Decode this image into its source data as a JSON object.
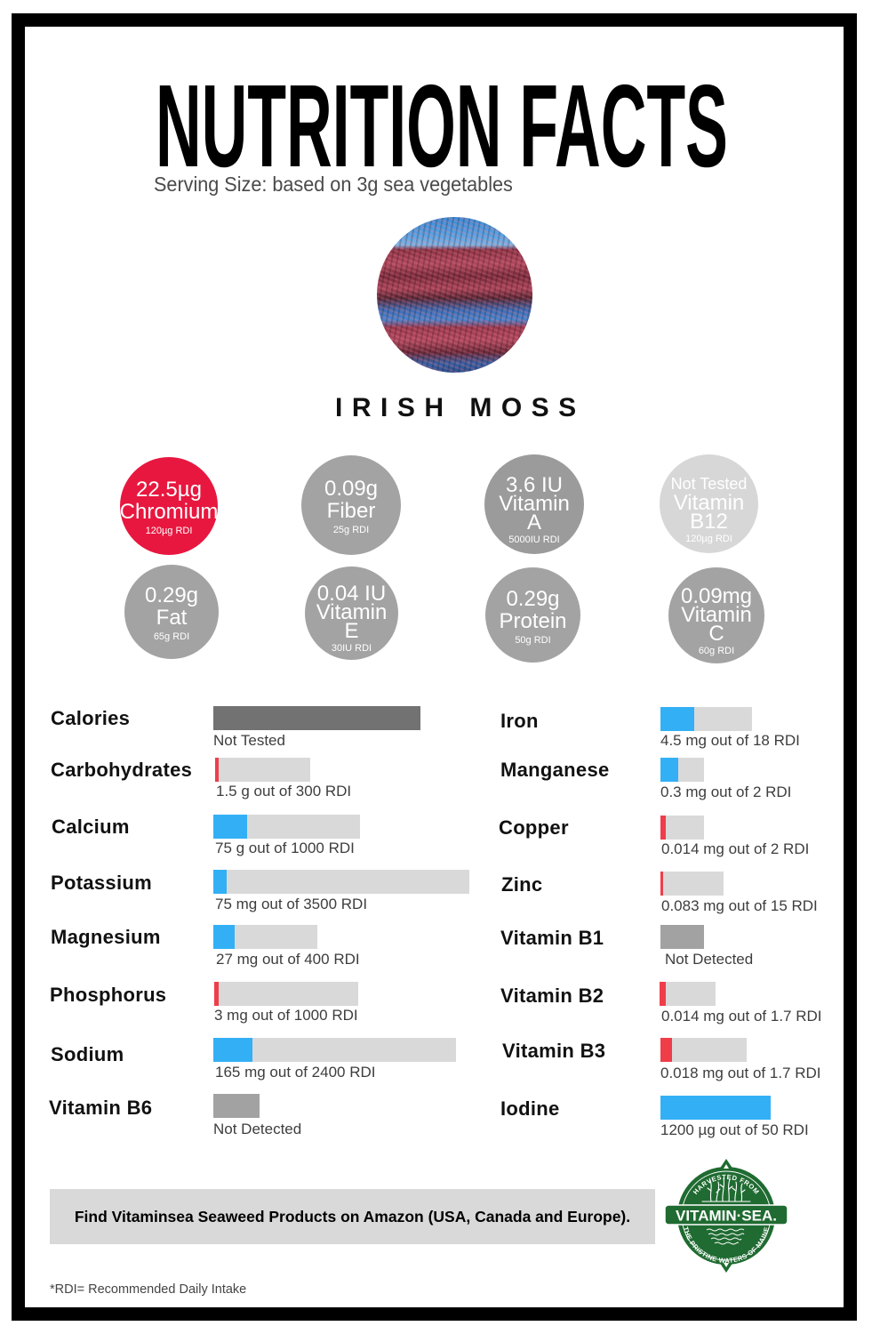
{
  "header": {
    "title": "NUTRITION FACTS",
    "serving_size": "Serving Size: based on 3g sea vegetables",
    "product_name": "IRISH MOSS",
    "photo_icon": "irish-moss-photo"
  },
  "colors": {
    "blue": "#33b0f5",
    "red": "#ef3e4a",
    "track": "#d9d9d9",
    "not_tested": "#727272",
    "not_detected": "#a2a2a2",
    "chromium_red": "#e8173f",
    "circle_gray": "#a3a3a3",
    "circle_dark": "#9b9b9b",
    "circle_light": "#d7d7d7",
    "brand_green": "#1f6b31",
    "banner_bg": "#d9d9d9"
  },
  "circles": [
    {
      "value": "22.5µg",
      "name": "Chromium",
      "rdi": "120µg RDI",
      "color": "chromium_red"
    },
    {
      "value": "0.09g",
      "name": "Fiber",
      "rdi": "25g RDI",
      "color": "circle_gray"
    },
    {
      "value": "3.6 IU",
      "name": "Vitamin",
      "suffix": "A",
      "rdi": "5000IU RDI",
      "color": "circle_dark"
    },
    {
      "value": "Not Tested",
      "name": "Vitamin",
      "suffix": "B12",
      "rdi": "120µg RDI",
      "color": "circle_light"
    },
    {
      "value": "0.29g",
      "name": "Fat",
      "rdi": "65g RDI",
      "color": "circle_gray"
    },
    {
      "value": "0.04 IU",
      "name": "Vitamin",
      "suffix": "E",
      "rdi": "30IU RDI",
      "color": "circle_gray"
    },
    {
      "value": "0.29g",
      "name": "Protein",
      "rdi": "50g RDI",
      "color": "circle_gray"
    },
    {
      "value": "0.09mg",
      "name": "Vitamin",
      "suffix": "C",
      "rdi": "60g RDI",
      "color": "circle_gray"
    }
  ],
  "nutrients": {
    "left": [
      {
        "label": "Calories",
        "caption": "Not Tested",
        "bar": {
          "track_width": 233,
          "fill_pct": 100,
          "fill_color": "not_tested"
        }
      },
      {
        "label": "Carbohydrates",
        "caption": "1.5 g out of 300 RDI",
        "bar": {
          "track_width": 107,
          "fill_pct": 3.7,
          "fill_color": "red"
        }
      },
      {
        "label": "Calcium",
        "caption": "75 g out of 1000 RDI",
        "bar": {
          "track_width": 165,
          "fill_pct": 23,
          "fill_color": "blue"
        }
      },
      {
        "label": "Potassium",
        "caption": "75 mg out of 3500 RDI",
        "bar": {
          "track_width": 288,
          "fill_pct": 5.2,
          "fill_color": "blue"
        }
      },
      {
        "label": "Magnesium",
        "caption": "27 mg out of 400 RDI",
        "bar": {
          "track_width": 117,
          "fill_pct": 20.5,
          "fill_color": "blue"
        }
      },
      {
        "label": "Phosphorus",
        "caption": "3 mg out of 1000 RDI",
        "bar": {
          "track_width": 162,
          "fill_pct": 3.1,
          "fill_color": "red"
        }
      },
      {
        "label": "Sodium",
        "caption": "165 mg out of 2400 RDI",
        "bar": {
          "track_width": 273,
          "fill_pct": 16.1,
          "fill_color": "blue"
        }
      },
      {
        "label": "Vitamin B6",
        "caption": "Not Detected",
        "bar": {
          "track_width": 52,
          "fill_pct": 100,
          "fill_color": "not_detected"
        }
      }
    ],
    "right": [
      {
        "label": "Iron",
        "caption": "4.5 mg out of 18 RDI",
        "bar": {
          "track_width": 103,
          "fill_pct": 36.9,
          "fill_color": "blue"
        }
      },
      {
        "label": "Manganese",
        "caption": "0.3 mg out of 2 RDI",
        "bar": {
          "track_width": 49,
          "fill_pct": 40.8,
          "fill_color": "blue"
        }
      },
      {
        "label": "Copper",
        "caption": "0.014 mg out of 2 RDI",
        "bar": {
          "track_width": 49,
          "fill_pct": 12.2,
          "fill_color": "red"
        }
      },
      {
        "label": "Zinc",
        "caption": "0.083 mg out of 15 RDI",
        "bar": {
          "track_width": 71,
          "fill_pct": 4.2,
          "fill_color": "red"
        }
      },
      {
        "label": "Vitamin B1",
        "caption": "Not Detected",
        "bar": {
          "track_width": 49,
          "fill_pct": 100,
          "fill_color": "not_detected"
        }
      },
      {
        "label": "Vitamin B2",
        "caption": "0.014 mg out of 1.7 RDI",
        "bar": {
          "track_width": 63,
          "fill_pct": 11.1,
          "fill_color": "red"
        }
      },
      {
        "label": "Vitamin B3",
        "caption": "0.018 mg out of 1.7 RDI",
        "bar": {
          "track_width": 97,
          "fill_pct": 13.4,
          "fill_color": "red"
        }
      },
      {
        "label": "Iodine",
        "caption": "1200 µg out of 50 RDI",
        "bar": {
          "track_width": 124,
          "fill_pct": 100,
          "fill_color": "blue"
        }
      }
    ]
  },
  "footer": {
    "banner_text": "Find Vitaminsea Seaweed Products on Amazon (USA, Canada and Europe).",
    "logo": {
      "top_arc": "HARVESTED FROM",
      "brand": "VITAMIN·SEA.",
      "bottom_arc": "THE PRISTINE WATERS OF MAINE"
    },
    "footnote": "*RDI= Recommended Daily Intake"
  },
  "chart_data": {
    "type": "bar",
    "orientation": "horizontal",
    "title": "NUTRITION FACTS",
    "subtitle": "Serving Size: based on 3g sea vegetables",
    "product": "IRISH MOSS",
    "xlabel": "",
    "ylabel": "",
    "categories": [
      "Calories",
      "Carbohydrates",
      "Calcium",
      "Potassium",
      "Magnesium",
      "Phosphorus",
      "Sodium",
      "Vitamin B6",
      "Iron",
      "Manganese",
      "Copper",
      "Zinc",
      "Vitamin B1",
      "Vitamin B2",
      "Vitamin B3",
      "Iodine"
    ],
    "series": [
      {
        "name": "Amount",
        "values": [
          null,
          1.5,
          75,
          75,
          27,
          3,
          165,
          null,
          4.5,
          0.3,
          0.014,
          0.083,
          null,
          0.014,
          0.018,
          1200
        ]
      },
      {
        "name": "RDI",
        "values": [
          null,
          300,
          1000,
          3500,
          400,
          1000,
          2400,
          null,
          18,
          2,
          2,
          15,
          null,
          1.7,
          1.7,
          50
        ]
      }
    ],
    "units": [
      "",
      "g",
      "g",
      "mg",
      "mg",
      "mg",
      "mg",
      "",
      "mg",
      "mg",
      "mg",
      "mg",
      "",
      "mg",
      "mg",
      "µg"
    ],
    "status": {
      "Calories": "Not Tested",
      "Vitamin B6": "Not Detected",
      "Vitamin B1": "Not Detected"
    },
    "highlights": [
      {
        "nutrient": "Chromium",
        "amount": 22.5,
        "unit": "µg",
        "rdi": "120µg"
      },
      {
        "nutrient": "Fiber",
        "amount": 0.09,
        "unit": "g",
        "rdi": "25g"
      },
      {
        "nutrient": "Vitamin A",
        "amount": 3.6,
        "unit": "IU",
        "rdi": "5000IU"
      },
      {
        "nutrient": "Vitamin B12",
        "amount": null,
        "unit": "",
        "rdi": "120µg",
        "status": "Not Tested"
      },
      {
        "nutrient": "Fat",
        "amount": 0.29,
        "unit": "g",
        "rdi": "65g"
      },
      {
        "nutrient": "Vitamin E",
        "amount": 0.04,
        "unit": "IU",
        "rdi": "30IU"
      },
      {
        "nutrient": "Protein",
        "amount": 0.29,
        "unit": "g",
        "rdi": "50g"
      },
      {
        "nutrient": "Vitamin C",
        "amount": 0.09,
        "unit": "mg",
        "rdi": "60g"
      }
    ],
    "bar_colors": {
      "below_threshold": "#ef3e4a",
      "above_threshold": "#33b0f5",
      "not_tested": "#727272",
      "not_detected": "#a2a2a2",
      "track": "#d9d9d9"
    },
    "grid": false,
    "legend": null,
    "footnote": "*RDI= Recommended Daily Intake"
  }
}
